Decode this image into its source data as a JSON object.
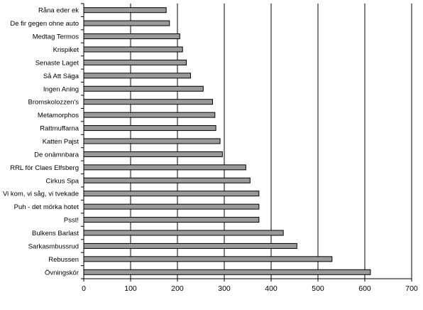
{
  "chart_data": {
    "type": "bar",
    "orientation": "horizontal",
    "categories": [
      "Råna eder ek",
      "De fir gegen ohne auto",
      "Medtag Termos",
      "Krispiket",
      "Senaste Laget",
      "Så Att Säga",
      "Ingen Aning",
      "Bromskolozzen's",
      "Metamorphos",
      "Rattmuffarna",
      "Katten Pajst",
      "De onämnbara",
      "RRL för Claes Elfsberg",
      "Cirkus Spa",
      "Vi kom, vi såg, vi tvekade",
      "Puh - det mörka hotet",
      "Psst!",
      "Bulkens Barlast",
      "Sarkasmbussrud",
      "Rebussen",
      "Övningskör"
    ],
    "values": [
      176,
      183,
      205,
      211,
      219,
      228,
      255,
      275,
      280,
      282,
      291,
      296,
      346,
      355,
      374,
      374,
      374,
      426,
      455,
      530,
      612
    ],
    "xlim": [
      0,
      700
    ],
    "xticks": [
      0,
      100,
      200,
      300,
      400,
      500,
      600,
      700
    ],
    "title": "",
    "xlabel": "",
    "ylabel": "",
    "grid": "vertical",
    "legend": "none",
    "colors": {
      "bar_fill": "#999999",
      "bar_stroke": "#000000",
      "grid": "#000000"
    }
  }
}
